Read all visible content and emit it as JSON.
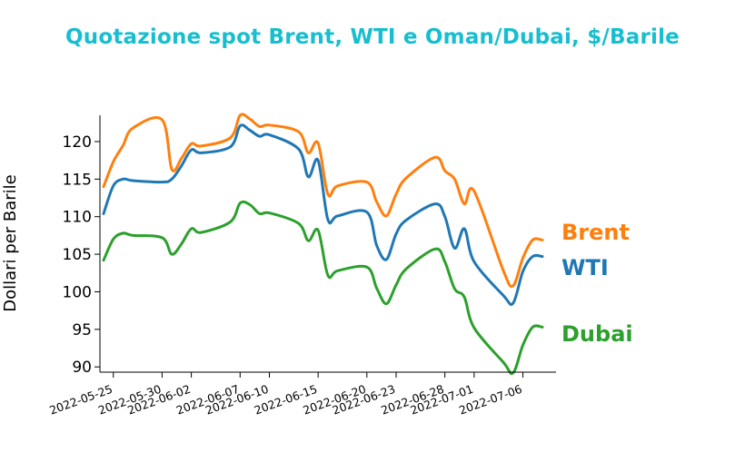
{
  "chart_data": {
    "type": "line",
    "title": "Quotazione spot Brent, WTI e Oman/Dubai, $/Barile",
    "xlabel": "",
    "ylabel": "Dollari per Barile",
    "ylim": [
      89.3,
      123.5
    ],
    "yticks": [
      90,
      95,
      100,
      105,
      110,
      115,
      120
    ],
    "xticks": [
      "2022-05-25",
      "2022-05-30",
      "2022-06-02",
      "2022-06-07",
      "2022-06-10",
      "2022-06-15",
      "2022-06-20",
      "2022-06-23",
      "2022-06-28",
      "2022-07-01",
      "2022-07-06"
    ],
    "grid": false,
    "legend": "inline labels at right end of each series",
    "x": [
      "2022-05-24",
      "2022-05-25",
      "2022-05-26",
      "2022-05-27",
      "2022-05-30",
      "2022-05-31",
      "2022-06-01",
      "2022-06-02",
      "2022-06-03",
      "2022-06-06",
      "2022-06-07",
      "2022-06-08",
      "2022-06-09",
      "2022-06-10",
      "2022-06-13",
      "2022-06-14",
      "2022-06-15",
      "2022-06-16",
      "2022-06-17",
      "2022-06-20",
      "2022-06-21",
      "2022-06-22",
      "2022-06-23",
      "2022-06-24",
      "2022-06-27",
      "2022-06-28",
      "2022-06-29",
      "2022-06-30",
      "2022-07-01",
      "2022-07-04",
      "2022-07-05",
      "2022-07-06",
      "2022-07-07",
      "2022-07-08"
    ],
    "series": [
      {
        "name": "Brent",
        "color": "#ff7f0e",
        "values": [
          114.0,
          117.3,
          119.5,
          121.8,
          122.9,
          116.3,
          117.8,
          119.7,
          119.4,
          120.5,
          123.5,
          123.0,
          122.0,
          122.2,
          121.3,
          118.5,
          119.8,
          113.0,
          114.1,
          114.6,
          112.0,
          110.1,
          113.0,
          115.1,
          117.9,
          116.1,
          115.0,
          111.7,
          113.4,
          102.8,
          100.8,
          104.5,
          106.9,
          106.9
        ]
      },
      {
        "name": "WTI",
        "color": "#1f77b4",
        "values": [
          110.4,
          114.1,
          115.0,
          114.8,
          114.6,
          115.0,
          116.8,
          118.9,
          118.5,
          119.3,
          122.1,
          121.5,
          120.7,
          120.9,
          119.0,
          115.3,
          117.5,
          109.6,
          110.1,
          110.6,
          106.2,
          104.3,
          107.7,
          109.5,
          111.7,
          110.0,
          105.8,
          108.4,
          104.0,
          99.5,
          98.5,
          102.7,
          104.7,
          104.7
        ]
      },
      {
        "name": "Dubai",
        "color": "#2ca02c",
        "values": [
          104.2,
          107.0,
          107.8,
          107.5,
          107.2,
          105.0,
          106.4,
          108.4,
          107.9,
          109.3,
          111.8,
          111.6,
          110.4,
          110.5,
          109.1,
          106.8,
          108.2,
          102.2,
          102.8,
          103.3,
          100.5,
          98.4,
          100.9,
          103.0,
          105.7,
          104.0,
          100.4,
          99.3,
          95.2,
          90.6,
          89.2,
          92.9,
          95.3,
          95.3
        ]
      }
    ]
  }
}
